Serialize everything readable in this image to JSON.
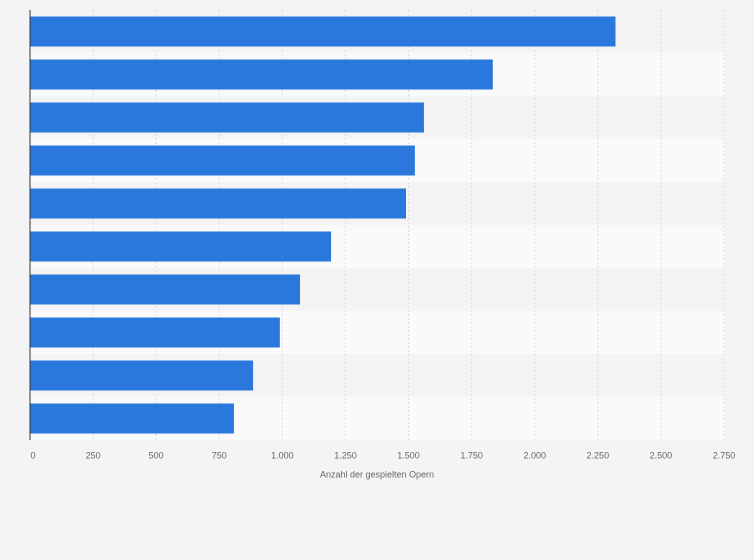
{
  "chart_data": {
    "type": "bar",
    "orientation": "horizontal",
    "categories": [
      null,
      null,
      null,
      null,
      null,
      null,
      null,
      null,
      null,
      null
    ],
    "values": [
      2320,
      1834,
      1561,
      1525,
      1490,
      1193,
      1070,
      990,
      884,
      808
    ],
    "color": "#2a78dc",
    "x_label": "Anzahl der gespielten Opern",
    "xlim": [
      0,
      2750
    ],
    "xticks": [
      0,
      250,
      500,
      750,
      {
        "value": 1000,
        "label": "1.000"
      },
      {
        "value": 1250,
        "label": "1.250"
      },
      {
        "value": 1500,
        "label": "1.500"
      },
      {
        "value": 1750,
        "label": "1.750"
      },
      {
        "value": 2000,
        "label": "2.000"
      },
      {
        "value": 2250,
        "label": "2.250"
      },
      {
        "value": 2500,
        "label": "2.500"
      },
      {
        "value": 2750,
        "label": "2.750"
      }
    ],
    "grid": true
  }
}
